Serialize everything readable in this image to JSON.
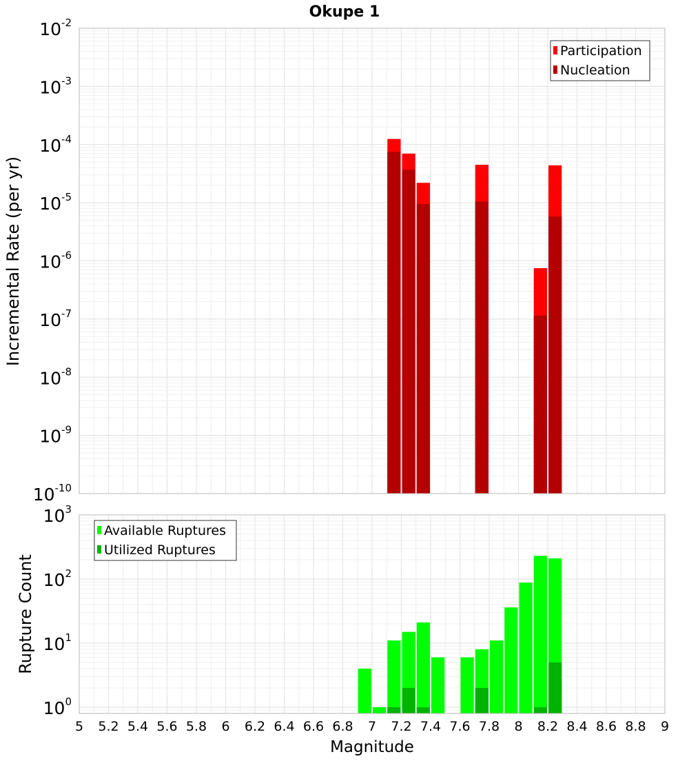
{
  "chart_data": [
    {
      "type": "bar",
      "title": "Okupe 1",
      "xlabel": "",
      "ylabel": "Incremental Rate (per yr)",
      "y_scale": "log",
      "ylim": [
        1e-10,
        0.01
      ],
      "xlim": [
        5,
        9
      ],
      "grid": true,
      "legend_position": "top-right",
      "bar_width": 0.1,
      "y_ticks": [
        {
          "base": "10",
          "exp": "-10"
        },
        {
          "base": "10",
          "exp": "-9"
        },
        {
          "base": "10",
          "exp": "-8"
        },
        {
          "base": "10",
          "exp": "-7"
        },
        {
          "base": "10",
          "exp": "-6"
        },
        {
          "base": "10",
          "exp": "-5"
        },
        {
          "base": "10",
          "exp": "-4"
        },
        {
          "base": "10",
          "exp": "-3"
        },
        {
          "base": "10",
          "exp": "-2"
        }
      ],
      "series": [
        {
          "name": "Participation",
          "color": "#ff0000",
          "points": [
            {
              "x": 7.15,
              "y": 0.000125
            },
            {
              "x": 7.25,
              "y": 7e-05
            },
            {
              "x": 7.35,
              "y": 2.2e-05
            },
            {
              "x": 7.75,
              "y": 4.5e-05
            },
            {
              "x": 8.15,
              "y": 7.5e-07
            },
            {
              "x": 8.25,
              "y": 4.4e-05
            }
          ]
        },
        {
          "name": "Nucleation",
          "color": "#b30000",
          "points": [
            {
              "x": 7.15,
              "y": 7.5e-05
            },
            {
              "x": 7.25,
              "y": 3.7e-05
            },
            {
              "x": 7.35,
              "y": 9.5e-06
            },
            {
              "x": 7.75,
              "y": 1.05e-05
            },
            {
              "x": 8.15,
              "y": 1.15e-07
            },
            {
              "x": 8.25,
              "y": 5.8e-06
            }
          ]
        }
      ]
    },
    {
      "type": "bar",
      "title": "",
      "xlabel": "Magnitude",
      "ylabel": "Rupture Count",
      "y_scale": "log",
      "ylim": [
        0.8,
        1000
      ],
      "xlim": [
        5,
        9
      ],
      "grid": true,
      "legend_position": "top-left",
      "bar_width": 0.1,
      "y_ticks": [
        {
          "base": "10",
          "exp": "0",
          "value": 1
        },
        {
          "base": "10",
          "exp": "1",
          "value": 10
        },
        {
          "base": "10",
          "exp": "2",
          "value": 100
        },
        {
          "base": "10",
          "exp": "3",
          "value": 1000
        }
      ],
      "x_ticks": [
        "5",
        "5.2",
        "5.4",
        "5.6",
        "5.8",
        "6",
        "6.2",
        "6.4",
        "6.6",
        "6.8",
        "7",
        "7.2",
        "7.4",
        "7.6",
        "7.8",
        "8",
        "8.2",
        "8.4",
        "8.6",
        "8.8",
        "9"
      ],
      "series": [
        {
          "name": "Available Ruptures",
          "color": "#00ff00",
          "points": [
            {
              "x": 6.95,
              "y": 4
            },
            {
              "x": 7.05,
              "y": 1
            },
            {
              "x": 7.15,
              "y": 11
            },
            {
              "x": 7.25,
              "y": 15
            },
            {
              "x": 7.35,
              "y": 21
            },
            {
              "x": 7.45,
              "y": 6
            },
            {
              "x": 7.65,
              "y": 6
            },
            {
              "x": 7.75,
              "y": 8
            },
            {
              "x": 7.85,
              "y": 11
            },
            {
              "x": 7.95,
              "y": 36
            },
            {
              "x": 8.05,
              "y": 88
            },
            {
              "x": 8.15,
              "y": 230
            },
            {
              "x": 8.25,
              "y": 210
            }
          ]
        },
        {
          "name": "Utilized Ruptures",
          "color": "#00b300",
          "points": [
            {
              "x": 7.15,
              "y": 1
            },
            {
              "x": 7.25,
              "y": 2
            },
            {
              "x": 7.35,
              "y": 1
            },
            {
              "x": 7.75,
              "y": 2
            },
            {
              "x": 8.15,
              "y": 1
            },
            {
              "x": 8.25,
              "y": 5
            }
          ]
        }
      ]
    }
  ]
}
